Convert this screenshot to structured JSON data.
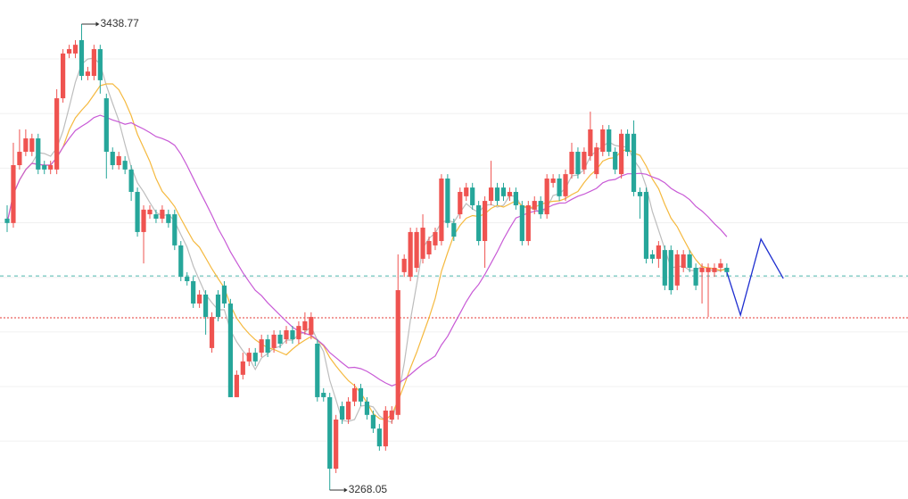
{
  "chart_data": {
    "type": "candlestick",
    "up_color": "#ef5350",
    "down_color": "#26a69a",
    "xlim": [
      -1.15,
      145.2
    ],
    "ylim": [
      3264.8,
      3447.6
    ],
    "yticks": [
      3286,
      3306,
      3326,
      3346,
      3366,
      3386,
      3406,
      3426
    ],
    "grid": true,
    "open": [
      3367.5,
      3365.9,
      3387.1,
      3392.0,
      3392.0,
      3396.9,
      3387.1,
      3385.5,
      3385.5,
      3411.6,
      3428.0,
      3428.0,
      3432.9,
      3419.8,
      3419.8,
      3429.6,
      3411.6,
      3392.0,
      3387.1,
      3388.7,
      3385.5,
      3377.3,
      3362.6,
      3369.1,
      3369.1,
      3367.5,
      3369.1,
      3369.1,
      3357.7,
      3346.2,
      3344.6,
      3336.4,
      3339.7,
      3320.1,
      3339.7,
      3343.0,
      3336.4,
      3302.1,
      3310.3,
      3315.2,
      3318.4,
      3318.4,
      3323.3,
      3320.1,
      3325.0,
      3323.3,
      3326.6,
      3323.3,
      3326.6,
      3325.0,
      3321.7,
      3303.7,
      3302.1,
      3275.9,
      3298.8,
      3293.9,
      3300.5,
      3305.4,
      3300.5,
      3295.6,
      3290.6,
      3284.1,
      3293.9,
      3295.6,
      3347.9,
      3346.2,
      3349.5,
      3352.8,
      3354.4,
      3357.7,
      3359.3,
      3382.2,
      3365.9,
      3369.1,
      3375.7,
      3378.9,
      3372.4,
      3359.3,
      3374.0,
      3378.9,
      3378.9,
      3375.7,
      3377.3,
      3372.4,
      3359.3,
      3370.8,
      3374.0,
      3369.1,
      3380.6,
      3382.2,
      3375.7,
      3383.8,
      3392.0,
      3385.5,
      3390.4,
      3383.8,
      3392.0,
      3400.2,
      3392.0,
      3383.8,
      3398.6,
      3398.6,
      3377.3,
      3377.3,
      3354.4,
      3352.8,
      3356.0,
      3356.0,
      3343.0,
      3349.5,
      3354.4,
      3349.5,
      3347.9,
      3347.9,
      3347.9,
      3349.5,
      3349.5
    ],
    "high": [
      3372.4,
      3395.3,
      3400.2,
      3400.2,
      3398.6,
      3398.6,
      3388.7,
      3388.7,
      3414.9,
      3429.6,
      3431.2,
      3432.9,
      3438.77,
      3423.1,
      3431.2,
      3431.2,
      3413.3,
      3393.6,
      3392.0,
      3390.4,
      3387.1,
      3378.9,
      3372.4,
      3372.4,
      3370.8,
      3372.4,
      3370.8,
      3370.8,
      3359.3,
      3347.9,
      3346.2,
      3341.3,
      3341.3,
      3333.2,
      3341.3,
      3344.6,
      3338.1,
      3311.9,
      3318.4,
      3320.1,
      3320.1,
      3325.0,
      3325.0,
      3326.6,
      3326.6,
      3328.2,
      3328.2,
      3329.9,
      3333.2,
      3333.2,
      3323.3,
      3305.4,
      3303.7,
      3295.6,
      3300.5,
      3302.1,
      3307.0,
      3307.0,
      3302.1,
      3297.2,
      3292.3,
      3298.8,
      3298.8,
      3354.4,
      3354.4,
      3364.2,
      3364.2,
      3369.1,
      3360.9,
      3364.2,
      3383.8,
      3383.8,
      3367.5,
      3378.9,
      3380.6,
      3380.6,
      3374.0,
      3375.7,
      3388.7,
      3380.6,
      3380.6,
      3378.9,
      3378.9,
      3374.0,
      3374.0,
      3375.7,
      3375.7,
      3383.8,
      3383.8,
      3383.8,
      3385.5,
      3395.3,
      3393.6,
      3393.6,
      3406.7,
      3395.3,
      3401.8,
      3401.8,
      3393.6,
      3400.2,
      3400.2,
      3403.5,
      3378.9,
      3378.9,
      3356.0,
      3359.3,
      3357.7,
      3357.7,
      3356.0,
      3356.0,
      3356.0,
      3351.1,
      3351.1,
      3351.1,
      3351.1,
      3352.8,
      3351.1
    ],
    "low": [
      3362.6,
      3364.2,
      3385.5,
      3390.4,
      3390.4,
      3383.8,
      3383.8,
      3383.8,
      3383.8,
      3410.0,
      3426.3,
      3426.3,
      3418.2,
      3418.2,
      3418.2,
      3413.3,
      3382.2,
      3385.5,
      3385.5,
      3383.8,
      3374.0,
      3360.9,
      3351.1,
      3367.5,
      3365.9,
      3365.9,
      3364.2,
      3356.0,
      3344.6,
      3343.0,
      3334.8,
      3334.8,
      3325.0,
      3318.4,
      3329.9,
      3334.8,
      3302.1,
      3302.1,
      3308.6,
      3313.5,
      3313.5,
      3316.8,
      3316.8,
      3318.4,
      3320.1,
      3321.7,
      3321.7,
      3321.7,
      3325.0,
      3323.3,
      3300.5,
      3300.5,
      3268.05,
      3274.3,
      3292.3,
      3292.3,
      3298.8,
      3298.8,
      3293.9,
      3289.0,
      3282.5,
      3282.5,
      3292.3,
      3293.9,
      3346.2,
      3344.6,
      3347.9,
      3351.1,
      3352.8,
      3356.0,
      3357.7,
      3364.2,
      3359.3,
      3367.5,
      3374.0,
      3370.8,
      3357.7,
      3349.5,
      3372.4,
      3372.4,
      3374.0,
      3374.0,
      3370.8,
      3357.7,
      3357.7,
      3369.1,
      3367.5,
      3367.5,
      3378.9,
      3374.0,
      3374.0,
      3382.2,
      3382.2,
      3383.8,
      3388.7,
      3382.2,
      3390.4,
      3390.4,
      3383.8,
      3382.2,
      3390.4,
      3375.7,
      3367.5,
      3351.1,
      3351.1,
      3349.5,
      3341.3,
      3339.7,
      3341.3,
      3347.9,
      3347.9,
      3341.3,
      3336.4,
      3331.5,
      3346.2,
      3347.9,
      3346.2
    ],
    "close": [
      3365.9,
      3387.1,
      3392.0,
      3396.9,
      3396.9,
      3385.5,
      3385.5,
      3387.1,
      3411.6,
      3428.0,
      3429.6,
      3431.2,
      3419.8,
      3421.4,
      3429.6,
      3418.2,
      3392.0,
      3387.1,
      3390.4,
      3385.5,
      3377.3,
      3362.6,
      3370.8,
      3370.8,
      3367.5,
      3370.8,
      3365.9,
      3357.7,
      3346.2,
      3344.6,
      3336.4,
      3339.7,
      3331.5,
      3331.5,
      3331.5,
      3336.4,
      3302.1,
      3310.3,
      3315.2,
      3318.4,
      3315.2,
      3323.3,
      3318.4,
      3325.0,
      3321.7,
      3326.6,
      3323.3,
      3328.2,
      3329.9,
      3331.5,
      3302.1,
      3302.1,
      3275.9,
      3293.9,
      3293.9,
      3300.5,
      3305.4,
      3300.5,
      3295.6,
      3290.6,
      3284.1,
      3297.2,
      3297.2,
      3341.3,
      3352.8,
      3362.6,
      3362.6,
      3364.2,
      3359.3,
      3362.6,
      3382.2,
      3365.9,
      3360.9,
      3377.3,
      3378.9,
      3372.4,
      3359.3,
      3374.0,
      3378.9,
      3374.0,
      3375.7,
      3377.3,
      3372.4,
      3359.3,
      3372.4,
      3374.0,
      3369.1,
      3382.2,
      3382.2,
      3375.7,
      3383.8,
      3392.0,
      3383.8,
      3392.0,
      3400.2,
      3393.6,
      3400.2,
      3392.0,
      3385.5,
      3398.6,
      3392.0,
      3377.3,
      3375.7,
      3352.8,
      3352.8,
      3357.7,
      3343.0,
      3341.3,
      3354.4,
      3354.4,
      3349.5,
      3343.0,
      3349.5,
      3349.5,
      3349.5,
      3351.1,
      3347.9
    ],
    "high_label": "3438.77",
    "low_label": "3268.05",
    "moving_averages": [
      {
        "period": 5,
        "color": "#bdbdbd"
      },
      {
        "period": 10,
        "color": "#f5b93f"
      },
      {
        "period": 20,
        "color": "#c85ad6"
      }
    ],
    "levels": [
      {
        "value": 3346.5,
        "color": "#4db6ac",
        "dash": "4 4"
      },
      {
        "value": 3331.2,
        "color": "#e53935",
        "dash": "2 2"
      }
    ],
    "forecast": {
      "x": [
        116,
        118.2,
        121.5,
        125.1
      ],
      "values": [
        3347.9,
        3332.2,
        3360.0,
        3345.6
      ],
      "color": "#1f2fd0"
    }
  }
}
